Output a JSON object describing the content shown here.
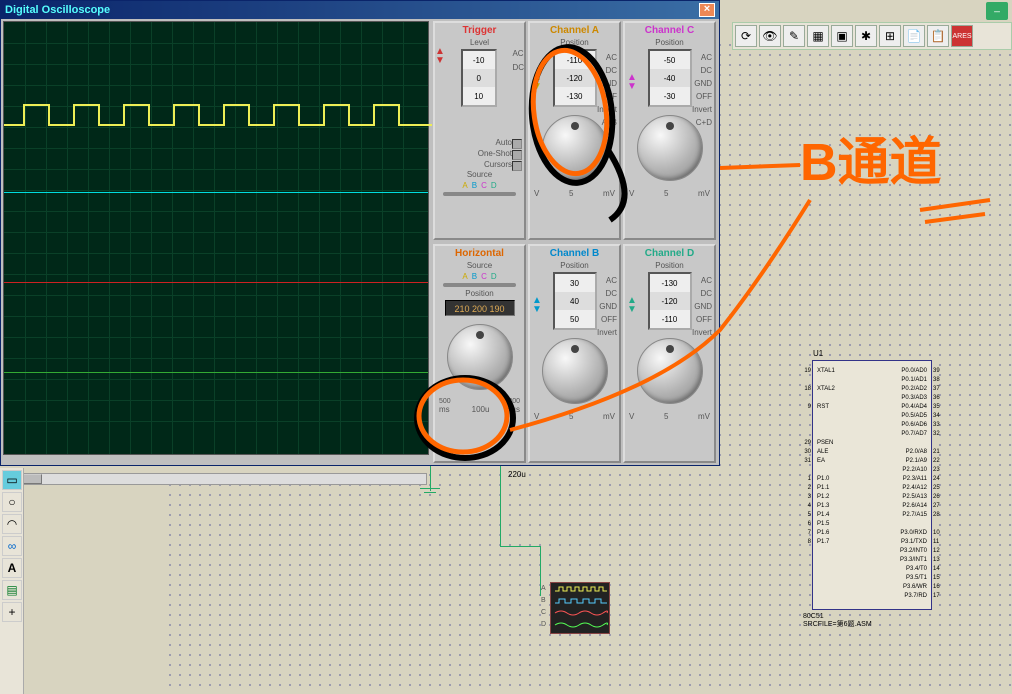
{
  "window": {
    "title": "Digital Oscilloscope"
  },
  "trigger": {
    "title": "Trigger",
    "level_label": "Level",
    "ac": "AC",
    "dc": "DC",
    "vals": [
      "-10",
      "0",
      "10"
    ],
    "auto": "Auto",
    "oneshot": "One-Shot",
    "cursors": "Cursors",
    "source": "Source",
    "src": [
      "A",
      "B",
      "C",
      "D"
    ]
  },
  "chA": {
    "title": "Channel A",
    "pos": "Position",
    "ac": "AC",
    "dc": "DC",
    "gnd": "GND",
    "off": "OFF",
    "inv": "Invert",
    "ab": "A+B",
    "vals": [
      "-110",
      "-120",
      "-130"
    ],
    "v": "V",
    "mv": "mV",
    "pf": "5"
  },
  "chB": {
    "title": "Channel B",
    "pos": "Position",
    "ac": "AC",
    "dc": "DC",
    "gnd": "GND",
    "off": "OFF",
    "inv": "Invert",
    "vals": [
      "30",
      "40",
      "50"
    ],
    "v": "V",
    "mv": "mV",
    "pf": "5"
  },
  "chC": {
    "title": "Channel C",
    "pos": "Position",
    "ac": "AC",
    "dc": "DC",
    "gnd": "GND",
    "off": "OFF",
    "inv": "Invert",
    "cd": "C+D",
    "vals": [
      "-50",
      "-40",
      "-30"
    ],
    "v": "V",
    "mv": "mV",
    "pf": "5"
  },
  "chD": {
    "title": "Channel D",
    "pos": "Position",
    "ac": "AC",
    "dc": "DC",
    "gnd": "GND",
    "off": "OFF",
    "inv": "Invert",
    "vals": [
      "-130",
      "-120",
      "-110"
    ],
    "v": "V",
    "mv": "mV",
    "pf": "5"
  },
  "horiz": {
    "title": "Horizontal",
    "source": "Source",
    "src": [
      "A",
      "B",
      "C",
      "D"
    ],
    "pos": "Position",
    "posval": "210 200 190",
    "ms": "ms",
    "us": "µs",
    "val": "100u",
    "s200": "200",
    "s500": "500"
  },
  "chip": {
    "ref": "U1",
    "left": [
      "XTAL1",
      "",
      "XTAL2",
      "",
      "RST",
      "",
      "",
      "",
      "PSEN",
      "ALE",
      "EA",
      "",
      "P1.0",
      "P1.1",
      "P1.2",
      "P1.3",
      "P1.4",
      "P1.5",
      "P1.6",
      "P1.7"
    ],
    "right": [
      "P0.0/AD0",
      "P0.1/AD1",
      "P0.2/AD2",
      "P0.3/AD3",
      "P0.4/AD4",
      "P0.5/AD5",
      "P0.6/AD6",
      "P0.7/AD7",
      "",
      "P2.0/A8",
      "P2.1/A9",
      "P2.2/A10",
      "P2.3/A11",
      "P2.4/A12",
      "P2.5/A13",
      "P2.6/A14",
      "P2.7/A15",
      "",
      "P3.0/RXD",
      "P3.1/TXD",
      "P3.2/INT0",
      "P3.3/INT1",
      "P3.4/T0",
      "P3.5/T1",
      "P3.6/WR",
      "P3.7/RD"
    ],
    "lpins": [
      "19",
      "",
      "18",
      "",
      "9",
      "",
      "",
      "",
      "29",
      "30",
      "31",
      "",
      "1",
      "2",
      "3",
      "4",
      "5",
      "6",
      "7",
      "8"
    ],
    "rpins": [
      "39",
      "38",
      "37",
      "36",
      "35",
      "34",
      "33",
      "32",
      "",
      "21",
      "22",
      "23",
      "24",
      "25",
      "26",
      "27",
      "28",
      "",
      "10",
      "11",
      "12",
      "13",
      "14",
      "15",
      "16",
      "17"
    ],
    "bot1": "80C51",
    "bot2": "SRCFILE=第6题.ASM"
  },
  "mini": {
    "a": "A",
    "b": "B",
    "c": "C",
    "d": "D"
  },
  "anno_text": "B通道",
  "cap": "220u",
  "colors": {
    "orange": "#ff6600"
  }
}
